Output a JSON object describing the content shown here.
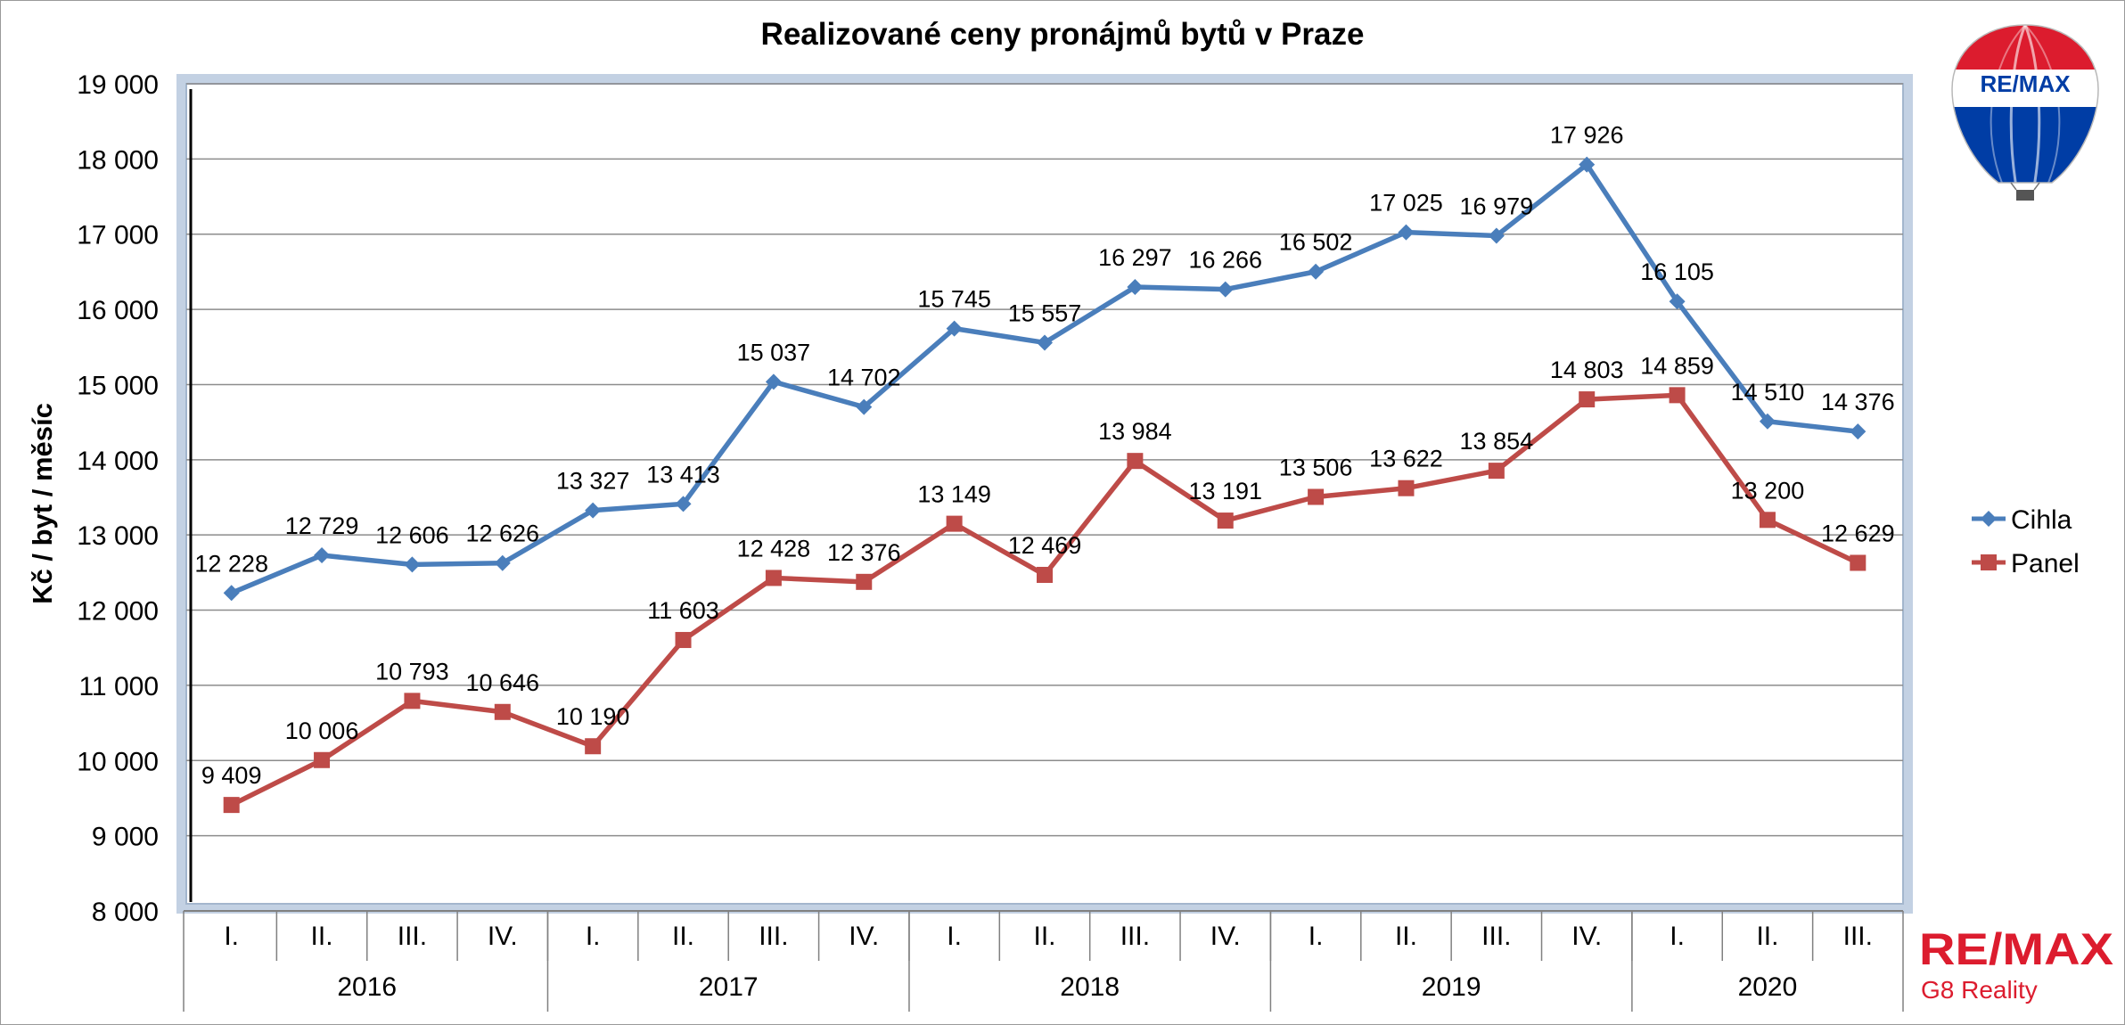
{
  "chart_data": {
    "type": "line",
    "title": "Realizované ceny pronájmů bytů v Praze",
    "ylabel": "Kč / byt / měsíc",
    "xlabel": "",
    "ylim": [
      8000,
      19000
    ],
    "y_ticks": [
      "8 000",
      "9 000",
      "10 000",
      "11 000",
      "12 000",
      "13 000",
      "14 000",
      "15 000",
      "16 000",
      "17 000",
      "18 000",
      "19 000"
    ],
    "y_tick_values": [
      8000,
      9000,
      10000,
      11000,
      12000,
      13000,
      14000,
      15000,
      16000,
      17000,
      18000,
      19000
    ],
    "categories": [
      "I.",
      "II.",
      "III.",
      "IV.",
      "I.",
      "II.",
      "III.",
      "IV.",
      "I.",
      "II.",
      "III.",
      "IV.",
      "I.",
      "II.",
      "III.",
      "IV.",
      "I.",
      "II.",
      "III."
    ],
    "years": [
      {
        "label": "2016",
        "quarters": 4
      },
      {
        "label": "2017",
        "quarters": 4
      },
      {
        "label": "2018",
        "quarters": 4
      },
      {
        "label": "2019",
        "quarters": 4
      },
      {
        "label": "2020",
        "quarters": 3
      }
    ],
    "grid": true,
    "legend_position": "right",
    "series": [
      {
        "name": "Cihla",
        "color": "#4a7ebb",
        "marker": "diamond",
        "values": [
          12228,
          12729,
          12606,
          12626,
          13327,
          13413,
          15037,
          14702,
          15745,
          15557,
          16297,
          16266,
          16502,
          17025,
          16979,
          17926,
          16105,
          14510,
          14376
        ],
        "labels": [
          "12 228",
          "12 729",
          "12 606",
          "12 626",
          "13 327",
          "13 413",
          "15 037",
          "14 702",
          "15 745",
          "15 557",
          "16 297",
          "16 266",
          "16 502",
          "17 025",
          "16 979",
          "17 926",
          "16 105",
          "14 510",
          "14 376"
        ]
      },
      {
        "name": "Panel",
        "color": "#be4b48",
        "marker": "square",
        "values": [
          9409,
          10006,
          10793,
          10646,
          10190,
          11603,
          12428,
          12376,
          13149,
          12469,
          13984,
          13191,
          13506,
          13622,
          13854,
          14803,
          14859,
          13200,
          12629
        ],
        "labels": [
          "9 409",
          "10 006",
          "10 793",
          "10 646",
          "10 190",
          "11 603",
          "12 428",
          "12 376",
          "13 149",
          "12 469",
          "13 984",
          "13 191",
          "13 506",
          "13 622",
          "13 854",
          "14 803",
          "14 859",
          "13 200",
          "12 629"
        ]
      }
    ]
  },
  "branding": {
    "balloon_text": "RE/MAX",
    "logo_text": "RE/MAX",
    "company": "G8 Reality",
    "colors": {
      "red": "#dc1c2e",
      "blue": "#003da5"
    }
  }
}
